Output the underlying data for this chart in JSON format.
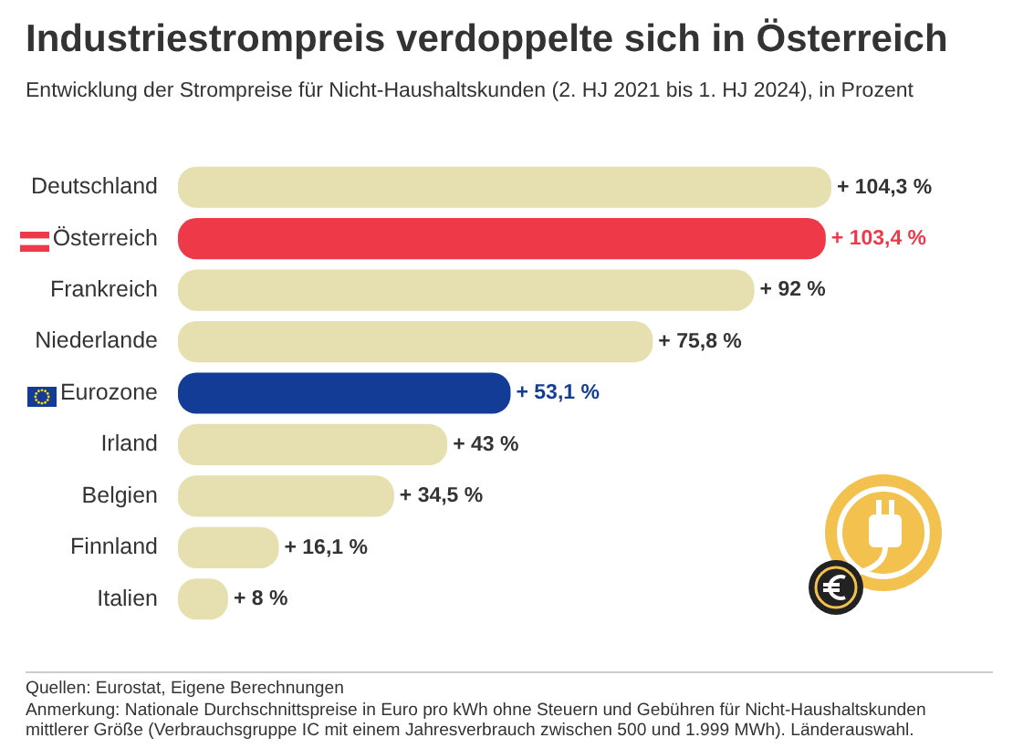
{
  "chart_data": {
    "type": "bar",
    "orientation": "horizontal",
    "title": "Industriestrompreis verdoppelte sich in Österreich",
    "subtitle": "Entwicklung der Strompreise für Nicht-Haushaltskunden (2. HJ 2021 bis 1. HJ 2024), in Prozent",
    "categories": [
      "Deutschland",
      "Österreich",
      "Frankreich",
      "Niederlande",
      "Eurozone",
      "Irland",
      "Belgien",
      "Finnland",
      "Italien"
    ],
    "values": [
      104.3,
      103.4,
      92,
      75.8,
      53.1,
      43,
      34.5,
      16.1,
      8
    ],
    "value_labels": [
      "+ 104,3 %",
      "+ 103,4 %",
      "+ 92 %",
      "+ 75,8 %",
      "+ 53,1 %",
      "+ 43 %",
      "+ 34,5 %",
      "+ 16,1 %",
      "+ 8 %"
    ],
    "colors": [
      "#e6dfb0",
      "#ee3a48",
      "#e6dfb0",
      "#e6dfb0",
      "#123c96",
      "#e6dfb0",
      "#e6dfb0",
      "#e6dfb0",
      "#e6dfb0"
    ],
    "legend": false,
    "tick_labels": "y",
    "annotations": [
      "Quellen: Eurostat, Eigene Berechnungen",
      "Anmerkung: Nationale Durchschnittspreise in Euro pro kWh ohne Steuern und Gebühren für Nicht-Haushaltskunden mittlerer Größe (Verbrauchsgruppe IC mit einem Jahresverbrauch zwischen 500 und 1.999 MWh). Länderauswahl."
    ]
  }
}
